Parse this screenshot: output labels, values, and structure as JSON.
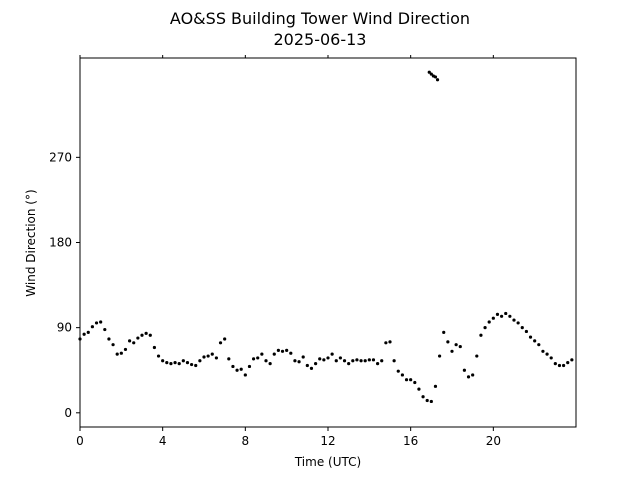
{
  "chart_data": {
    "type": "scatter",
    "title": "AO&SS Building Tower Wind Direction",
    "subtitle": "2025-06-13",
    "xlabel": "Time (UTC)",
    "ylabel": "Wind Direction (°)",
    "xlim": [
      0,
      24
    ],
    "ylim": [
      -15,
      375
    ],
    "x_ticks": [
      0,
      4,
      8,
      12,
      16,
      20
    ],
    "x_tick_labels": [
      "0",
      "4",
      "8",
      "12",
      "16",
      "20"
    ],
    "y_ticks": [
      0,
      90,
      180,
      270
    ],
    "y_tick_labels": [
      "0",
      "90",
      "180",
      "270"
    ],
    "grid": false,
    "marker_color": "#000000",
    "series": [
      {
        "values": [
          [
            0.0,
            78
          ],
          [
            0.2,
            83
          ],
          [
            0.4,
            85
          ],
          [
            0.6,
            91
          ],
          [
            0.8,
            95
          ],
          [
            1.0,
            96
          ],
          [
            1.2,
            88
          ],
          [
            1.4,
            78
          ],
          [
            1.6,
            72
          ],
          [
            1.8,
            62
          ],
          [
            2.0,
            63
          ],
          [
            2.2,
            67
          ],
          [
            2.4,
            76
          ],
          [
            2.6,
            74
          ],
          [
            2.8,
            79
          ],
          [
            3.0,
            82
          ],
          [
            3.2,
            84
          ],
          [
            3.4,
            82
          ],
          [
            3.6,
            69
          ],
          [
            3.8,
            60
          ],
          [
            4.0,
            55
          ],
          [
            4.2,
            53
          ],
          [
            4.4,
            52
          ],
          [
            4.6,
            53
          ],
          [
            4.8,
            52
          ],
          [
            5.0,
            55
          ],
          [
            5.2,
            53
          ],
          [
            5.4,
            51
          ],
          [
            5.6,
            50
          ],
          [
            5.8,
            55
          ],
          [
            6.0,
            59
          ],
          [
            6.2,
            60
          ],
          [
            6.4,
            62
          ],
          [
            6.6,
            58
          ],
          [
            6.8,
            74
          ],
          [
            7.0,
            78
          ],
          [
            7.2,
            57
          ],
          [
            7.4,
            49
          ],
          [
            7.6,
            45
          ],
          [
            7.8,
            46
          ],
          [
            8.0,
            40
          ],
          [
            8.2,
            49
          ],
          [
            8.4,
            57
          ],
          [
            8.6,
            58
          ],
          [
            8.8,
            62
          ],
          [
            9.0,
            55
          ],
          [
            9.2,
            52
          ],
          [
            9.4,
            62
          ],
          [
            9.6,
            66
          ],
          [
            9.8,
            65
          ],
          [
            10.0,
            66
          ],
          [
            10.2,
            63
          ],
          [
            10.4,
            55
          ],
          [
            10.6,
            54
          ],
          [
            10.8,
            59
          ],
          [
            11.0,
            50
          ],
          [
            11.2,
            47
          ],
          [
            11.4,
            52
          ],
          [
            11.6,
            57
          ],
          [
            11.8,
            56
          ],
          [
            12.0,
            58
          ],
          [
            12.2,
            62
          ],
          [
            12.4,
            55
          ],
          [
            12.6,
            58
          ],
          [
            12.8,
            55
          ],
          [
            13.0,
            52
          ],
          [
            13.2,
            55
          ],
          [
            13.4,
            56
          ],
          [
            13.6,
            55
          ],
          [
            13.8,
            55
          ],
          [
            14.0,
            56
          ],
          [
            14.2,
            56
          ],
          [
            14.4,
            52
          ],
          [
            14.6,
            55
          ],
          [
            14.8,
            74
          ],
          [
            15.0,
            75
          ],
          [
            15.2,
            55
          ],
          [
            15.4,
            44
          ],
          [
            15.6,
            40
          ],
          [
            15.8,
            35
          ],
          [
            16.0,
            35
          ],
          [
            16.2,
            32
          ],
          [
            16.4,
            25
          ],
          [
            16.6,
            17
          ],
          [
            16.8,
            13
          ],
          [
            17.0,
            12
          ],
          [
            17.2,
            28
          ],
          [
            17.4,
            60
          ],
          [
            17.6,
            85
          ],
          [
            17.8,
            75
          ],
          [
            18.0,
            65
          ],
          [
            18.2,
            72
          ],
          [
            18.4,
            70
          ],
          [
            18.6,
            45
          ],
          [
            18.8,
            38
          ],
          [
            19.0,
            40
          ],
          [
            19.2,
            60
          ],
          [
            19.4,
            82
          ],
          [
            19.6,
            90
          ],
          [
            19.8,
            96
          ],
          [
            20.0,
            100
          ],
          [
            20.2,
            104
          ],
          [
            20.4,
            102
          ],
          [
            20.6,
            105
          ],
          [
            20.8,
            102
          ],
          [
            21.0,
            98
          ],
          [
            21.2,
            95
          ],
          [
            21.4,
            90
          ],
          [
            21.6,
            86
          ],
          [
            21.8,
            80
          ],
          [
            22.0,
            76
          ],
          [
            22.2,
            72
          ],
          [
            22.4,
            65
          ],
          [
            22.6,
            62
          ],
          [
            22.8,
            58
          ],
          [
            23.0,
            52
          ],
          [
            23.2,
            50
          ],
          [
            23.4,
            50
          ],
          [
            23.6,
            53
          ],
          [
            23.8,
            56
          ],
          [
            16.9,
            360
          ],
          [
            17.0,
            358
          ],
          [
            17.1,
            356
          ],
          [
            17.2,
            355
          ],
          [
            17.3,
            352
          ]
        ]
      }
    ]
  }
}
